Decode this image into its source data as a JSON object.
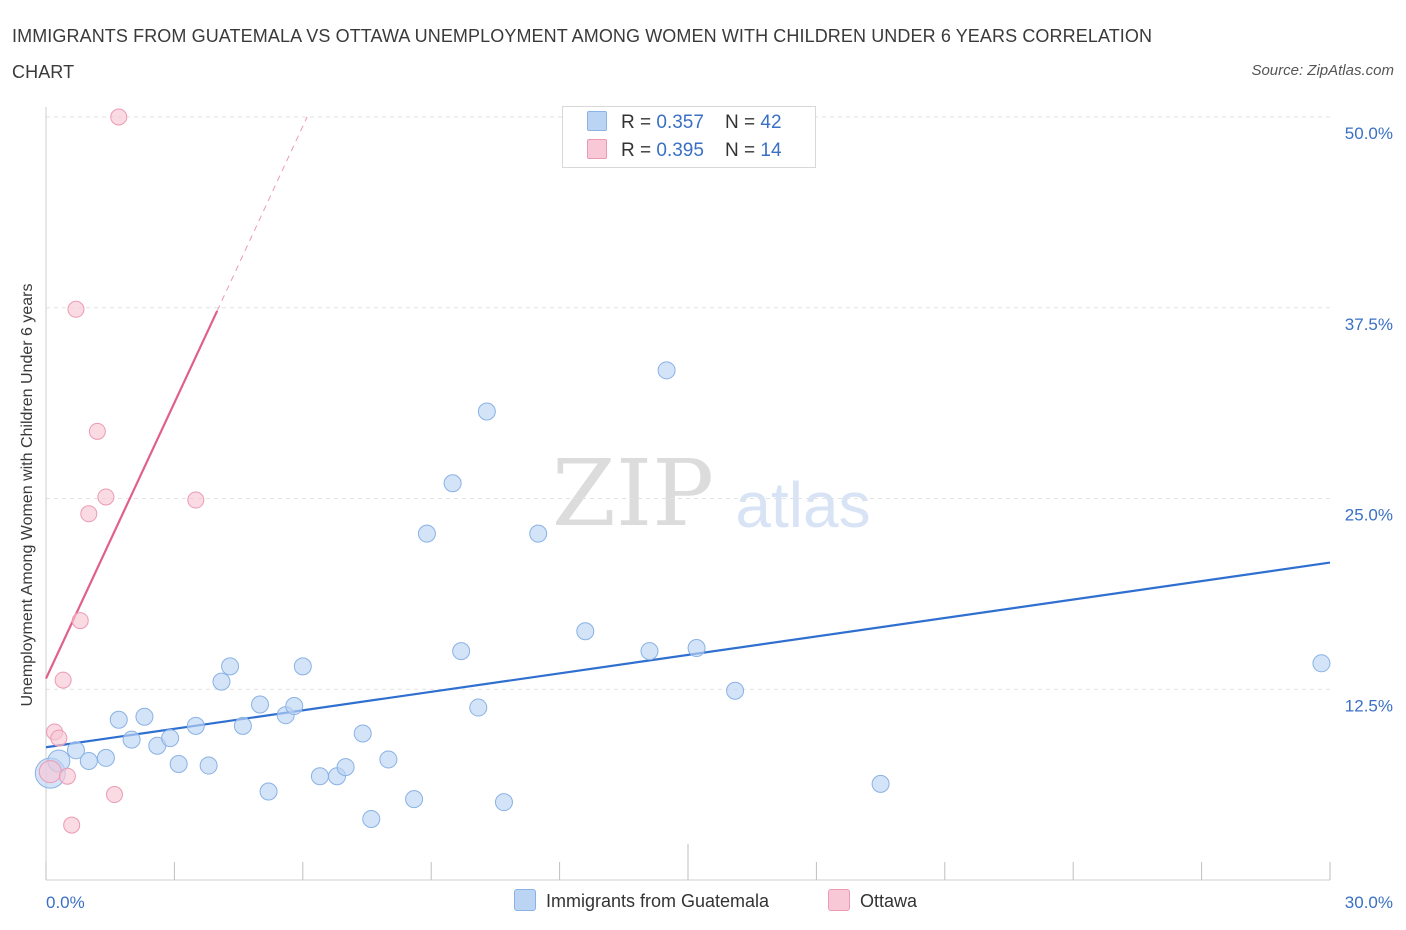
{
  "title": "IMMIGRANTS FROM GUATEMALA VS OTTAWA UNEMPLOYMENT AMONG WOMEN WITH CHILDREN UNDER 6 YEARS CORRELATION CHART",
  "source": "Source: ZipAtlas.com",
  "watermark": {
    "zip": "ZIP",
    "atlas": "atlas"
  },
  "legend": {
    "rows": [
      {
        "r_label": "R = ",
        "r_value": "0.357",
        "n_label": "N = ",
        "n_value": "42"
      },
      {
        "r_label": "R = ",
        "r_value": "0.395",
        "n_label": "N = ",
        "n_value": "14"
      }
    ]
  },
  "bottom_legend": [
    "Immigrants from Guatemala",
    "Ottawa"
  ],
  "colors": {
    "blue_fill": "#bcd4f4",
    "blue_stroke": "#8ab2e4",
    "blue_line": "#2f6fd0",
    "pink_fill": "#f8c8d6",
    "pink_stroke": "#ec9ab4",
    "pink_line": "#e0608a",
    "grid": "#e2e2e2",
    "tick_label": "#3a70c4"
  },
  "chart_data": {
    "type": "scatter",
    "xlabel": "",
    "ylabel": "Unemployment Among Women with Children Under 6 years",
    "xlim": [
      0,
      30
    ],
    "ylim": [
      0,
      50
    ],
    "x_tick_labels": [
      "0.0%",
      "30.0%"
    ],
    "y_ticks": [
      12.5,
      25.0,
      37.5,
      50.0
    ],
    "y_tick_labels": [
      "12.5%",
      "25.0%",
      "37.5%",
      "50.0%"
    ],
    "grid": true,
    "legend_position": "top-center",
    "series": [
      {
        "name": "Immigrants from Guatemala",
        "color": "#bcd4f4",
        "points": [
          [
            0.1,
            7.0
          ],
          [
            0.3,
            7.8
          ],
          [
            0.7,
            8.5
          ],
          [
            1.0,
            7.8
          ],
          [
            1.4,
            8.0
          ],
          [
            1.7,
            10.5
          ],
          [
            2.0,
            9.2
          ],
          [
            2.3,
            10.7
          ],
          [
            2.6,
            8.8
          ],
          [
            2.9,
            9.3
          ],
          [
            3.1,
            7.6
          ],
          [
            3.5,
            10.1
          ],
          [
            3.8,
            7.5
          ],
          [
            4.1,
            13.0
          ],
          [
            4.3,
            14.0
          ],
          [
            4.6,
            10.1
          ],
          [
            5.0,
            11.5
          ],
          [
            5.2,
            5.8
          ],
          [
            5.6,
            10.8
          ],
          [
            5.8,
            11.4
          ],
          [
            6.0,
            14.0
          ],
          [
            6.4,
            6.8
          ],
          [
            6.8,
            6.8
          ],
          [
            7.0,
            7.4
          ],
          [
            7.4,
            9.6
          ],
          [
            7.6,
            4.0
          ],
          [
            8.0,
            7.9
          ],
          [
            8.6,
            5.3
          ],
          [
            8.9,
            22.7
          ],
          [
            9.5,
            26.0
          ],
          [
            9.7,
            15.0
          ],
          [
            10.1,
            11.3
          ],
          [
            10.3,
            30.7
          ],
          [
            10.7,
            5.1
          ],
          [
            11.5,
            22.7
          ],
          [
            12.6,
            16.3
          ],
          [
            14.1,
            15.0
          ],
          [
            14.5,
            33.4
          ],
          [
            15.2,
            15.2
          ],
          [
            16.1,
            12.4
          ],
          [
            19.5,
            6.3
          ],
          [
            29.8,
            14.2
          ]
        ],
        "trend": {
          "x": [
            0,
            30
          ],
          "y": [
            8.7,
            20.8
          ]
        }
      },
      {
        "name": "Ottawa",
        "color": "#f8c8d6",
        "points": [
          [
            0.1,
            7.1
          ],
          [
            0.2,
            9.7
          ],
          [
            0.3,
            9.3
          ],
          [
            0.4,
            13.1
          ],
          [
            0.5,
            6.8
          ],
          [
            0.6,
            3.6
          ],
          [
            0.7,
            37.4
          ],
          [
            0.8,
            17.0
          ],
          [
            1.0,
            24.0
          ],
          [
            1.2,
            29.4
          ],
          [
            1.4,
            25.1
          ],
          [
            1.6,
            5.6
          ],
          [
            1.7,
            50.0
          ],
          [
            3.5,
            24.9
          ]
        ],
        "trend": {
          "x": [
            0,
            4.0
          ],
          "y": [
            13.2,
            37.3
          ]
        },
        "trend_extension": {
          "x": [
            4.0,
            6.1
          ],
          "y": [
            37.3,
            50.0
          ]
        }
      }
    ]
  }
}
